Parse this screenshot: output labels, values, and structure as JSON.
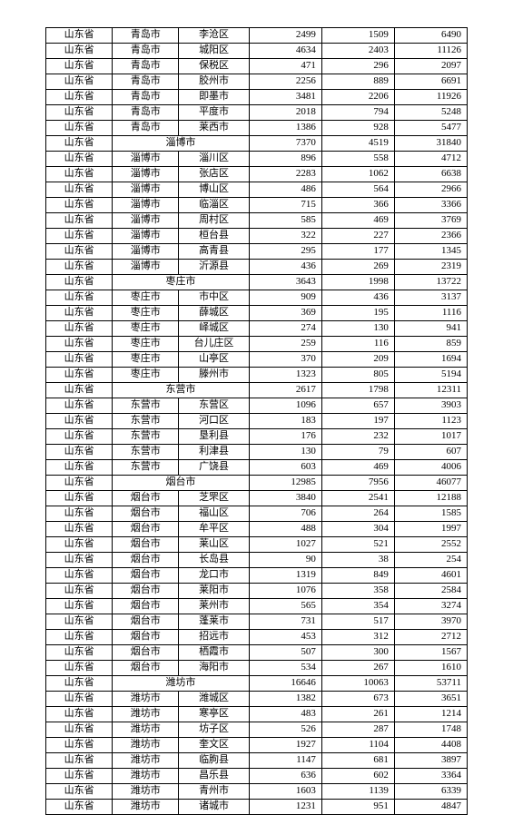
{
  "table": {
    "column_classes": [
      "c0",
      "c1",
      "c2",
      "c3",
      "c4",
      "c5"
    ],
    "rows": [
      {
        "type": "row",
        "cells": [
          "山东省",
          "青岛市",
          "李沧区",
          "2499",
          "1509",
          "6490"
        ]
      },
      {
        "type": "row",
        "cells": [
          "山东省",
          "青岛市",
          "城阳区",
          "4634",
          "2403",
          "11126"
        ]
      },
      {
        "type": "row",
        "cells": [
          "山东省",
          "青岛市",
          "保税区",
          "471",
          "296",
          "2097"
        ]
      },
      {
        "type": "row",
        "cells": [
          "山东省",
          "青岛市",
          "胶州市",
          "2256",
          "889",
          "6691"
        ]
      },
      {
        "type": "row",
        "cells": [
          "山东省",
          "青岛市",
          "即墨市",
          "3481",
          "2206",
          "11926"
        ]
      },
      {
        "type": "row",
        "cells": [
          "山东省",
          "青岛市",
          "平度市",
          "2018",
          "794",
          "5248"
        ]
      },
      {
        "type": "row",
        "cells": [
          "山东省",
          "青岛市",
          "莱西市",
          "1386",
          "928",
          "5477"
        ]
      },
      {
        "type": "section",
        "province": "山东省",
        "city": "淄博市",
        "vals": [
          "7370",
          "4519",
          "31840"
        ]
      },
      {
        "type": "row",
        "cells": [
          "山东省",
          "淄博市",
          "淄川区",
          "896",
          "558",
          "4712"
        ]
      },
      {
        "type": "row",
        "cells": [
          "山东省",
          "淄博市",
          "张店区",
          "2283",
          "1062",
          "6638"
        ]
      },
      {
        "type": "row",
        "cells": [
          "山东省",
          "淄博市",
          "博山区",
          "486",
          "564",
          "2966"
        ]
      },
      {
        "type": "row",
        "cells": [
          "山东省",
          "淄博市",
          "临淄区",
          "715",
          "366",
          "3366"
        ]
      },
      {
        "type": "row",
        "cells": [
          "山东省",
          "淄博市",
          "周村区",
          "585",
          "469",
          "3769"
        ]
      },
      {
        "type": "row",
        "cells": [
          "山东省",
          "淄博市",
          "桓台县",
          "322",
          "227",
          "2366"
        ]
      },
      {
        "type": "row",
        "cells": [
          "山东省",
          "淄博市",
          "高青县",
          "295",
          "177",
          "1345"
        ]
      },
      {
        "type": "row",
        "cells": [
          "山东省",
          "淄博市",
          "沂源县",
          "436",
          "269",
          "2319"
        ]
      },
      {
        "type": "section",
        "province": "山东省",
        "city": "枣庄市",
        "vals": [
          "3643",
          "1998",
          "13722"
        ]
      },
      {
        "type": "row",
        "cells": [
          "山东省",
          "枣庄市",
          "市中区",
          "909",
          "436",
          "3137"
        ]
      },
      {
        "type": "row",
        "cells": [
          "山东省",
          "枣庄市",
          "薛城区",
          "369",
          "195",
          "1116"
        ]
      },
      {
        "type": "row",
        "cells": [
          "山东省",
          "枣庄市",
          "峄城区",
          "274",
          "130",
          "941"
        ]
      },
      {
        "type": "row",
        "cells": [
          "山东省",
          "枣庄市",
          "台儿庄区",
          "259",
          "116",
          "859"
        ]
      },
      {
        "type": "row",
        "cells": [
          "山东省",
          "枣庄市",
          "山亭区",
          "370",
          "209",
          "1694"
        ]
      },
      {
        "type": "row",
        "cells": [
          "山东省",
          "枣庄市",
          "滕州市",
          "1323",
          "805",
          "5194"
        ]
      },
      {
        "type": "section",
        "province": "山东省",
        "city": "东营市",
        "vals": [
          "2617",
          "1798",
          "12311"
        ]
      },
      {
        "type": "row",
        "cells": [
          "山东省",
          "东营市",
          "东营区",
          "1096",
          "657",
          "3903"
        ]
      },
      {
        "type": "row",
        "cells": [
          "山东省",
          "东营市",
          "河口区",
          "183",
          "197",
          "1123"
        ]
      },
      {
        "type": "row",
        "cells": [
          "山东省",
          "东营市",
          "垦利县",
          "176",
          "232",
          "1017"
        ]
      },
      {
        "type": "row",
        "cells": [
          "山东省",
          "东营市",
          "利津县",
          "130",
          "79",
          "607"
        ]
      },
      {
        "type": "row",
        "cells": [
          "山东省",
          "东营市",
          "广饶县",
          "603",
          "469",
          "4006"
        ]
      },
      {
        "type": "section",
        "province": "山东省",
        "city": "烟台市",
        "vals": [
          "12985",
          "7956",
          "46077"
        ]
      },
      {
        "type": "row",
        "cells": [
          "山东省",
          "烟台市",
          "芝罘区",
          "3840",
          "2541",
          "12188"
        ]
      },
      {
        "type": "row",
        "cells": [
          "山东省",
          "烟台市",
          "福山区",
          "706",
          "264",
          "1585"
        ]
      },
      {
        "type": "row",
        "cells": [
          "山东省",
          "烟台市",
          "牟平区",
          "488",
          "304",
          "1997"
        ]
      },
      {
        "type": "row",
        "cells": [
          "山东省",
          "烟台市",
          "莱山区",
          "1027",
          "521",
          "2552"
        ]
      },
      {
        "type": "row",
        "cells": [
          "山东省",
          "烟台市",
          "长岛县",
          "90",
          "38",
          "254"
        ]
      },
      {
        "type": "row",
        "cells": [
          "山东省",
          "烟台市",
          "龙口市",
          "1319",
          "849",
          "4601"
        ]
      },
      {
        "type": "row",
        "cells": [
          "山东省",
          "烟台市",
          "莱阳市",
          "1076",
          "358",
          "2584"
        ]
      },
      {
        "type": "row",
        "cells": [
          "山东省",
          "烟台市",
          "莱州市",
          "565",
          "354",
          "3274"
        ]
      },
      {
        "type": "row",
        "cells": [
          "山东省",
          "烟台市",
          "蓬莱市",
          "731",
          "517",
          "3970"
        ]
      },
      {
        "type": "row",
        "cells": [
          "山东省",
          "烟台市",
          "招远市",
          "453",
          "312",
          "2712"
        ]
      },
      {
        "type": "row",
        "cells": [
          "山东省",
          "烟台市",
          "栖霞市",
          "507",
          "300",
          "1567"
        ]
      },
      {
        "type": "row",
        "cells": [
          "山东省",
          "烟台市",
          "海阳市",
          "534",
          "267",
          "1610"
        ]
      },
      {
        "type": "section",
        "province": "山东省",
        "city": "潍坊市",
        "vals": [
          "16646",
          "10063",
          "53711"
        ]
      },
      {
        "type": "row",
        "cells": [
          "山东省",
          "潍坊市",
          "潍城区",
          "1382",
          "673",
          "3651"
        ]
      },
      {
        "type": "row",
        "cells": [
          "山东省",
          "潍坊市",
          "寒亭区",
          "483",
          "261",
          "1214"
        ]
      },
      {
        "type": "row",
        "cells": [
          "山东省",
          "潍坊市",
          "坊子区",
          "526",
          "287",
          "1748"
        ]
      },
      {
        "type": "row",
        "cells": [
          "山东省",
          "潍坊市",
          "奎文区",
          "1927",
          "1104",
          "4408"
        ]
      },
      {
        "type": "row",
        "cells": [
          "山东省",
          "潍坊市",
          "临朐县",
          "1147",
          "681",
          "3897"
        ]
      },
      {
        "type": "row",
        "cells": [
          "山东省",
          "潍坊市",
          "昌乐县",
          "636",
          "602",
          "3364"
        ]
      },
      {
        "type": "row",
        "cells": [
          "山东省",
          "潍坊市",
          "青州市",
          "1603",
          "1139",
          "6339"
        ]
      },
      {
        "type": "row",
        "cells": [
          "山东省",
          "潍坊市",
          "诸城市",
          "1231",
          "951",
          "4847"
        ]
      }
    ]
  },
  "style": {
    "background_color": "#ffffff",
    "border_color": "#000000",
    "text_color": "#000000",
    "font_size_pt": 8,
    "font_family": "SimSun"
  }
}
